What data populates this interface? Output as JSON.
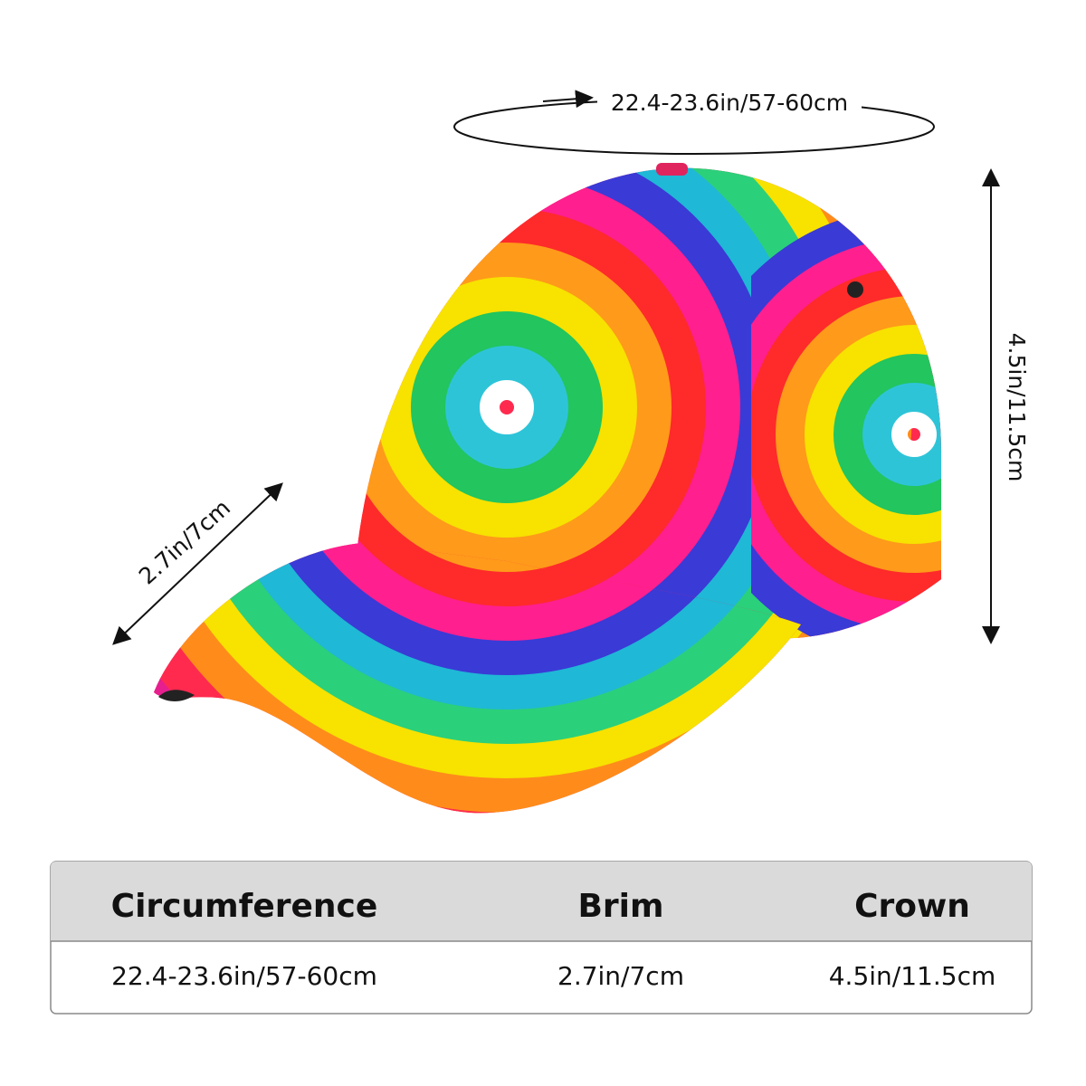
{
  "annotations": {
    "circumference": "22.4-23.6in/57-60cm",
    "brim": "2.7in/7cm",
    "crown": "4.5in/11.5cm"
  },
  "table": {
    "header": [
      "Circumference",
      "Brim",
      "Crown"
    ],
    "rows": [
      [
        "22.4-23.6in/57-60cm",
        "2.7in/7cm",
        "4.5in/11.5cm"
      ]
    ]
  }
}
